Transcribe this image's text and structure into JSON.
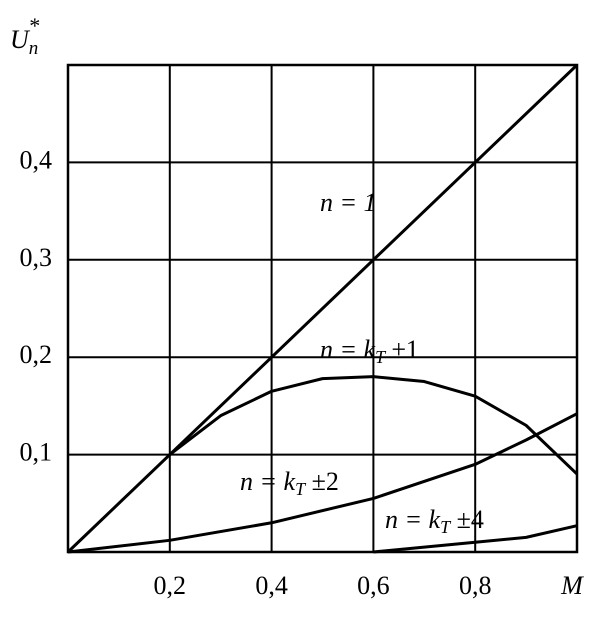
{
  "chart_data": {
    "type": "line",
    "y_label": "U",
    "y_label_sub": "n",
    "y_label_sup": "*",
    "x_label": "M",
    "xlim": [
      0,
      1
    ],
    "ylim": [
      0,
      0.5
    ],
    "xticks": [
      {
        "value": 0.2,
        "label": "0,2"
      },
      {
        "value": 0.4,
        "label": "0,4"
      },
      {
        "value": 0.6,
        "label": "0,6"
      },
      {
        "value": 0.8,
        "label": "0,8"
      }
    ],
    "yticks": [
      {
        "value": 0.1,
        "label": "0,1"
      },
      {
        "value": 0.2,
        "label": "0,2"
      },
      {
        "value": 0.3,
        "label": "0,3"
      },
      {
        "value": 0.4,
        "label": "0,4"
      }
    ],
    "grid": true,
    "series": [
      {
        "label": "n = 1",
        "color": "#000000",
        "x": [
          0,
          1
        ],
        "values": [
          0,
          0.5
        ]
      },
      {
        "label": "n = k",
        "label_sub": "T",
        "label_tail": " ±1",
        "color": "#000000",
        "x": [
          0.2,
          0.3,
          0.4,
          0.5,
          0.6,
          0.7,
          0.8,
          0.9,
          1.0
        ],
        "values": [
          0.1,
          0.14,
          0.165,
          0.178,
          0.18,
          0.175,
          0.16,
          0.13,
          0.08
        ]
      },
      {
        "label": "n = k",
        "label_sub": "T",
        "label_tail": " ±2",
        "color": "#000000",
        "x": [
          0,
          0.2,
          0.4,
          0.6,
          0.8,
          0.9,
          1.0
        ],
        "values": [
          0,
          0.012,
          0.03,
          0.055,
          0.09,
          0.115,
          0.142
        ]
      },
      {
        "label": "n = k",
        "label_sub": "T",
        "label_tail": " ±4",
        "color": "#000000",
        "x": [
          0.6,
          0.7,
          0.8,
          0.9,
          1.0
        ],
        "values": [
          0,
          0.005,
          0.01,
          0.015,
          0.027
        ]
      }
    ]
  }
}
